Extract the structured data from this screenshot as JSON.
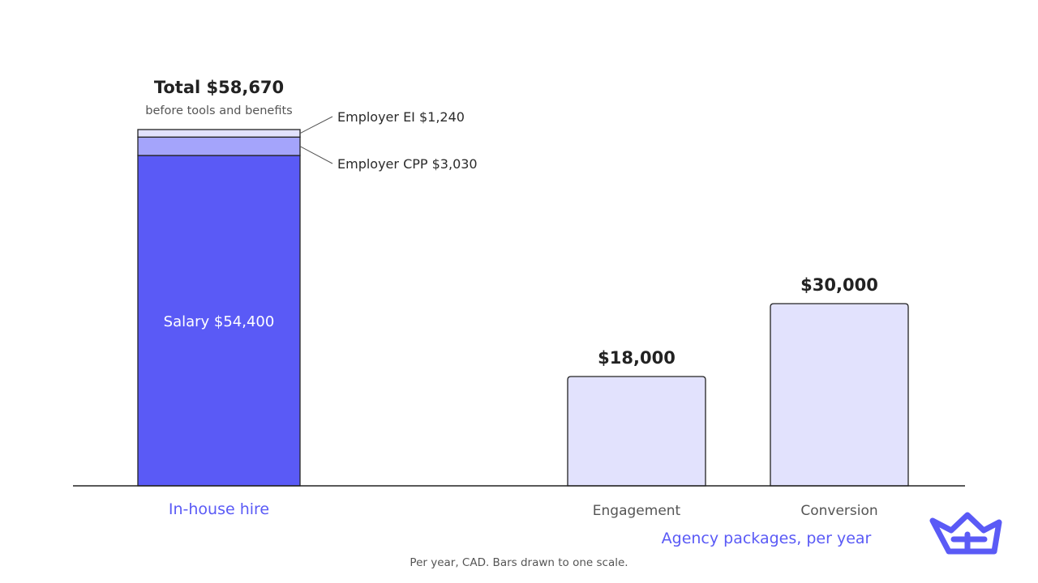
{
  "chart_data": {
    "type": "bar",
    "ylim": [
      0,
      58670
    ],
    "grid": false,
    "colors": {
      "salary": "#5a5af6",
      "cpp": "#a4a4fb",
      "ei": "#e2e2fd",
      "agency": "#e2e2fd",
      "accent_text": "#5a5af6",
      "baseline": "#222222"
    },
    "inhouse": {
      "category": "In-house hire",
      "total_label": "Total $58,670",
      "total_sublabel": "before tools and benefits",
      "total": 58670,
      "segments": [
        {
          "name": "Salary",
          "value": 54400,
          "label": "Salary $54,400"
        },
        {
          "name": "Employer CPP",
          "value": 3030,
          "label": "Employer CPP $3,030"
        },
        {
          "name": "Employer EI",
          "value": 1240,
          "label": "Employer EI $1,240"
        }
      ]
    },
    "agency": {
      "group_label": "Agency packages, per year",
      "bars": [
        {
          "category": "Engagement",
          "value": 18000,
          "label": "$18,000"
        },
        {
          "category": "Conversion",
          "value": 30000,
          "label": "$30,000"
        }
      ]
    },
    "footnote": "Per year, CAD. Bars drawn to one scale."
  },
  "brand": {
    "logo_icon": "crown-logo-icon",
    "logo_color": "#5a5af6"
  }
}
